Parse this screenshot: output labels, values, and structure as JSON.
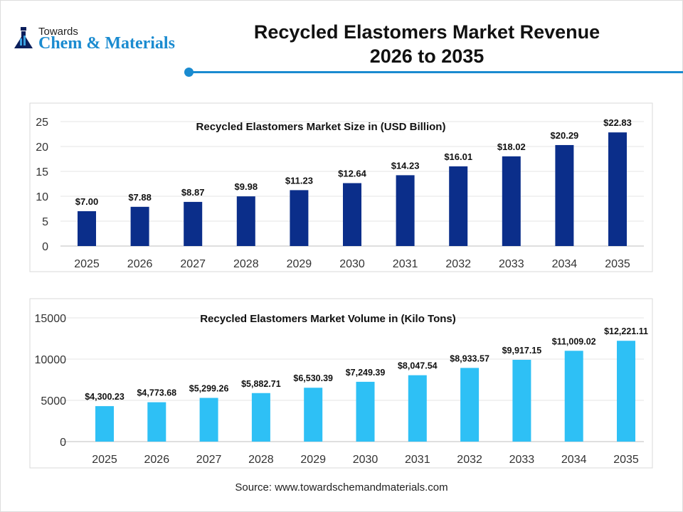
{
  "logo": {
    "line1": "Towards",
    "line2": "Chem & Materials"
  },
  "title_line1": "Recycled Elastomers Market Revenue",
  "title_line2": "2026 to 2035",
  "source": "Source: www.towardschemandmaterials.com",
  "chart_data": [
    {
      "type": "bar",
      "title": "Recycled Elastomers Market Size in (USD Billion)",
      "categories": [
        "2025",
        "2026",
        "2027",
        "2028",
        "2029",
        "2030",
        "2031",
        "2032",
        "2033",
        "2034",
        "2035"
      ],
      "values": [
        7.0,
        7.88,
        8.87,
        9.98,
        11.23,
        12.64,
        14.23,
        16.01,
        18.02,
        20.29,
        22.83
      ],
      "labels": [
        "$7.00",
        "$7.88",
        "$8.87",
        "$9.98",
        "$11.23",
        "$12.64",
        "$14.23",
        "$16.01",
        "$18.02",
        "$20.29",
        "$22.83"
      ],
      "ylim": [
        0,
        25
      ],
      "yticks": [
        "0",
        "5",
        "10",
        "15",
        "20",
        "25"
      ],
      "grid": true,
      "color": "#0b2e8a"
    },
    {
      "type": "bar",
      "title": "Recycled Elastomers Market Volume in (Kilo Tons)",
      "categories": [
        "2025",
        "2026",
        "2027",
        "2028",
        "2029",
        "2030",
        "2031",
        "2032",
        "2033",
        "2034",
        "2035"
      ],
      "values": [
        4300.23,
        4773.68,
        5299.26,
        5882.71,
        6530.39,
        7249.39,
        8047.54,
        8933.57,
        9917.15,
        11009.02,
        12221.11
      ],
      "labels": [
        "$4,300.23",
        "$4,773.68",
        "$5,299.26",
        "$5,882.71",
        "$6,530.39",
        "$7,249.39",
        "$8,047.54",
        "$8,933.57",
        "$9,917.15",
        "$11,009.02",
        "$12,221.11"
      ],
      "ylim": [
        0,
        15000
      ],
      "yticks": [
        "0",
        "5000",
        "10000",
        "15000"
      ],
      "grid": true,
      "color": "#2ec0f5"
    }
  ]
}
